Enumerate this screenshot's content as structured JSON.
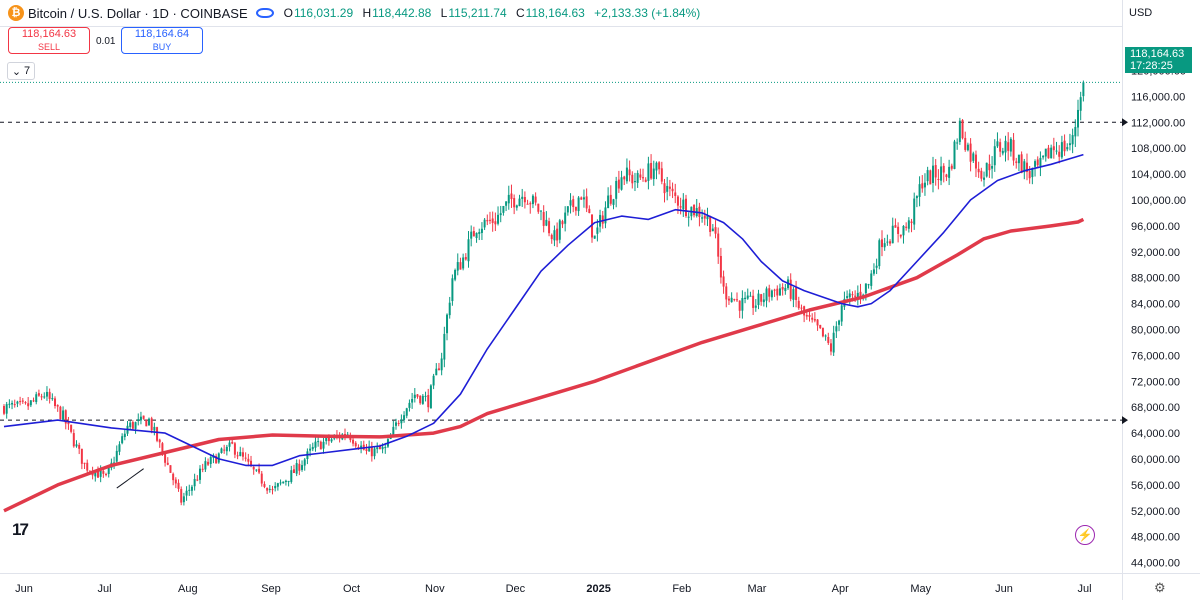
{
  "header": {
    "symbol": "Bitcoin / U.S. Dollar · 1D · COINBASE",
    "coin_glyph": "₿",
    "ohlc": [
      {
        "k": "O",
        "v": "116,031.29"
      },
      {
        "k": "H",
        "v": "118,442.88"
      },
      {
        "k": "L",
        "v": "115,211.74"
      },
      {
        "k": "C",
        "v": "118,164.63"
      }
    ],
    "change": "+2,133.33 (+1.84%)"
  },
  "trade": {
    "sell_price": "118,164.63",
    "sell_label": "SELL",
    "spread": "0.01",
    "buy_price": "118,164.64",
    "buy_label": "BUY"
  },
  "indicators_toggle": {
    "count": "7",
    "glyph": "⌄"
  },
  "currency": "USD",
  "last_price": {
    "value": "118,164.63",
    "countdown": "17:28:25"
  },
  "branding": {
    "logo": "17"
  },
  "icons": {
    "spark": "spark-icon",
    "gear": "gear-icon",
    "eye": "eye-icon"
  },
  "colors": {
    "up": "#089981",
    "down": "#f23645",
    "ma_fast": "#1e1ed6",
    "ma_slow": "#e03a4a",
    "accent": "#2962ff"
  },
  "chart_data": {
    "type": "candlestick",
    "y_ticks": [
      44000,
      48000,
      52000,
      56000,
      60000,
      64000,
      68000,
      72000,
      76000,
      80000,
      84000,
      88000,
      92000,
      96000,
      100000,
      104000,
      108000,
      112000,
      116000,
      120000
    ],
    "y_tick_labels": [
      "44,000.00",
      "48,000.00",
      "52,000.00",
      "56,000.00",
      "60,000.00",
      "64,000.00",
      "68,000.00",
      "72,000.00",
      "76,000.00",
      "80,000.00",
      "84,000.00",
      "88,000.00",
      "92,000.00",
      "96,000.00",
      "100,000.00",
      "104,000.00",
      "108,000.00",
      "112,000.00",
      "116,000.00",
      "120,000.00"
    ],
    "ylim": [
      42000,
      122000
    ],
    "x_labels": [
      {
        "label": "Jun",
        "day": 0
      },
      {
        "label": "Jul",
        "day": 30
      },
      {
        "label": "Aug",
        "day": 61
      },
      {
        "label": "Sep",
        "day": 92
      },
      {
        "label": "Oct",
        "day": 122
      },
      {
        "label": "Nov",
        "day": 153
      },
      {
        "label": "Dec",
        "day": 183
      },
      {
        "label": "2025",
        "day": 214,
        "bold": true
      },
      {
        "label": "Feb",
        "day": 245
      },
      {
        "label": "Mar",
        "day": 273
      },
      {
        "label": "Apr",
        "day": 304
      },
      {
        "label": "May",
        "day": 334
      },
      {
        "label": "Jun",
        "day": 365
      },
      {
        "label": "Jul",
        "day": 395
      }
    ],
    "horizontal_levels": [
      112000,
      66000
    ],
    "anchors": [
      [
        0,
        68000
      ],
      [
        8,
        68000
      ],
      [
        15,
        70000
      ],
      [
        22,
        66500
      ],
      [
        30,
        59000
      ],
      [
        38,
        57000
      ],
      [
        46,
        65000
      ],
      [
        54,
        66000
      ],
      [
        62,
        58000
      ],
      [
        66,
        53500
      ],
      [
        75,
        59000
      ],
      [
        85,
        62000
      ],
      [
        93,
        58000
      ],
      [
        100,
        55000
      ],
      [
        108,
        58000
      ],
      [
        116,
        62000
      ],
      [
        122,
        63000
      ],
      [
        128,
        64000
      ],
      [
        135,
        61000
      ],
      [
        142,
        61500
      ],
      [
        148,
        67000
      ],
      [
        153,
        70000
      ],
      [
        158,
        69000
      ],
      [
        163,
        76000
      ],
      [
        167,
        88000
      ],
      [
        171,
        91000
      ],
      [
        176,
        96000
      ],
      [
        183,
        97000
      ],
      [
        189,
        100000
      ],
      [
        194,
        101000
      ],
      [
        200,
        98000
      ],
      [
        205,
        94000
      ],
      [
        210,
        98000
      ],
      [
        215,
        101000
      ],
      [
        220,
        94000
      ],
      [
        225,
        100000
      ],
      [
        230,
        104000
      ],
      [
        236,
        103000
      ],
      [
        242,
        105000
      ],
      [
        248,
        101000
      ],
      [
        254,
        99000
      ],
      [
        260,
        98000
      ],
      [
        264,
        96000
      ],
      [
        268,
        86000
      ],
      [
        274,
        84000
      ],
      [
        280,
        84000
      ],
      [
        286,
        86000
      ],
      [
        292,
        86500
      ],
      [
        298,
        82000
      ],
      [
        303,
        80000
      ],
      [
        308,
        77000
      ],
      [
        312,
        84000
      ],
      [
        317,
        85000
      ],
      [
        322,
        87000
      ],
      [
        327,
        94000
      ],
      [
        332,
        95000
      ],
      [
        337,
        96000
      ],
      [
        342,
        103000
      ],
      [
        347,
        104000
      ],
      [
        352,
        104500
      ],
      [
        356,
        111500
      ],
      [
        360,
        107000
      ],
      [
        365,
        104000
      ],
      [
        370,
        108000
      ],
      [
        374,
        108500
      ],
      [
        378,
        106000
      ],
      [
        382,
        104000
      ],
      [
        386,
        105000
      ],
      [
        390,
        108000
      ],
      [
        394,
        108000
      ],
      [
        398,
        109000
      ],
      [
        401,
        117000
      ],
      [
        402,
        118164.63
      ]
    ],
    "ma_fast": {
      "period": 50,
      "values": [
        [
          0,
          65000
        ],
        [
          20,
          66000
        ],
        [
          40,
          64800
        ],
        [
          60,
          64000
        ],
        [
          70,
          62000
        ],
        [
          80,
          60000
        ],
        [
          90,
          59000
        ],
        [
          100,
          59000
        ],
        [
          110,
          60500
        ],
        [
          120,
          61000
        ],
        [
          130,
          61500
        ],
        [
          140,
          62000
        ],
        [
          150,
          63500
        ],
        [
          160,
          65500
        ],
        [
          170,
          70000
        ],
        [
          180,
          77000
        ],
        [
          190,
          83000
        ],
        [
          200,
          89000
        ],
        [
          210,
          93000
        ],
        [
          220,
          96500
        ],
        [
          230,
          97500
        ],
        [
          240,
          97000
        ],
        [
          250,
          98500
        ],
        [
          260,
          98000
        ],
        [
          268,
          96500
        ],
        [
          275,
          94000
        ],
        [
          282,
          90500
        ],
        [
          290,
          87500
        ],
        [
          298,
          86000
        ],
        [
          305,
          85000
        ],
        [
          312,
          84000
        ],
        [
          318,
          83500
        ],
        [
          323,
          84000
        ],
        [
          330,
          86000
        ],
        [
          340,
          90500
        ],
        [
          350,
          95000
        ],
        [
          360,
          100000
        ],
        [
          370,
          103000
        ],
        [
          380,
          104500
        ],
        [
          390,
          105500
        ],
        [
          398,
          106500
        ],
        [
          402,
          107000
        ]
      ]
    },
    "ma_slow": {
      "period": 200,
      "values": [
        [
          0,
          52000
        ],
        [
          20,
          56000
        ],
        [
          40,
          59000
        ],
        [
          60,
          61000
        ],
        [
          80,
          63000
        ],
        [
          100,
          63700
        ],
        [
          120,
          63500
        ],
        [
          140,
          63400
        ],
        [
          160,
          64000
        ],
        [
          170,
          65000
        ],
        [
          180,
          67000
        ],
        [
          200,
          69500
        ],
        [
          220,
          72000
        ],
        [
          240,
          75000
        ],
        [
          260,
          78000
        ],
        [
          280,
          80500
        ],
        [
          300,
          83000
        ],
        [
          320,
          85000
        ],
        [
          340,
          88000
        ],
        [
          355,
          91500
        ],
        [
          365,
          94000
        ],
        [
          375,
          95200
        ],
        [
          390,
          96000
        ],
        [
          400,
          96600
        ],
        [
          402,
          97000
        ]
      ]
    }
  }
}
